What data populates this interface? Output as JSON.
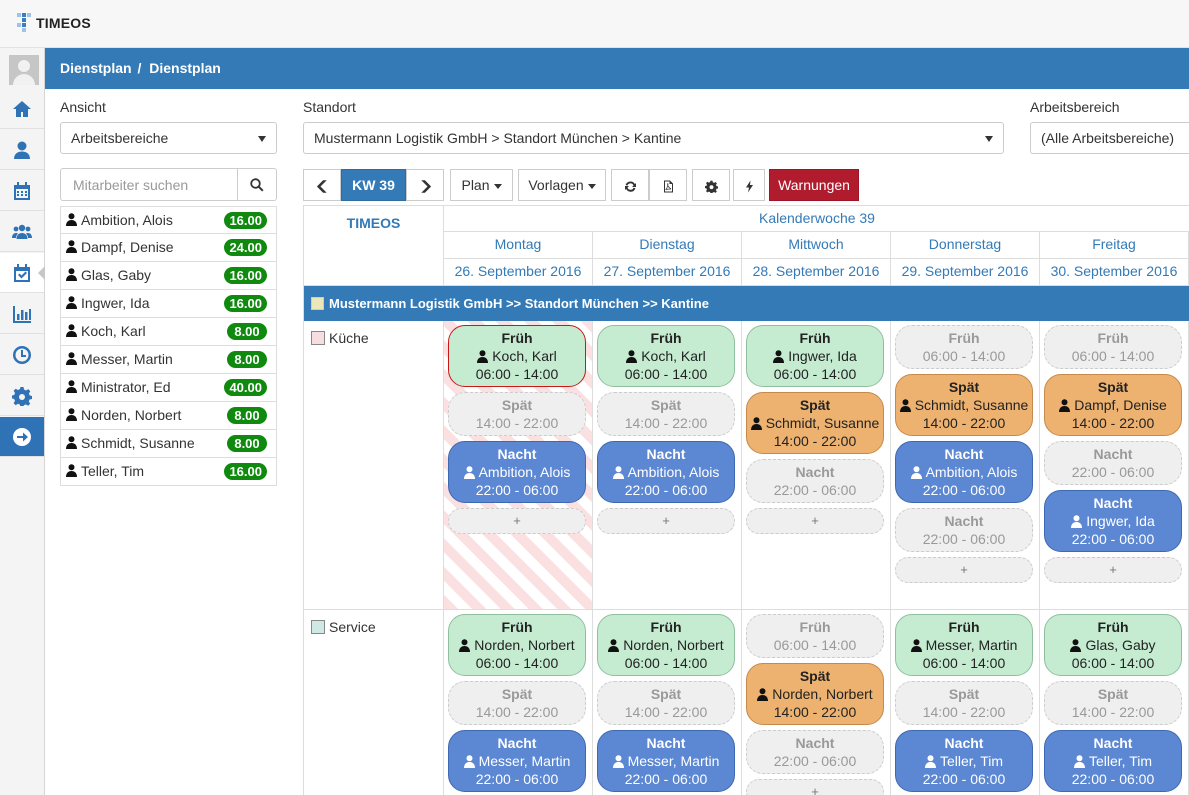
{
  "app": {
    "logo_text": "TIMEOS"
  },
  "sidebar": {
    "items": [
      {
        "name": "nav-home",
        "icon": "home-icon"
      },
      {
        "name": "nav-user",
        "icon": "user-icon"
      },
      {
        "name": "nav-calendar",
        "icon": "calendar-icon"
      },
      {
        "name": "nav-team",
        "icon": "team-icon"
      },
      {
        "name": "nav-schedule",
        "icon": "calendar-check-icon",
        "active": true
      },
      {
        "name": "nav-reports",
        "icon": "bar-chart-icon"
      },
      {
        "name": "nav-time",
        "icon": "clock-icon"
      },
      {
        "name": "nav-settings",
        "icon": "gear-icon"
      },
      {
        "name": "nav-go",
        "icon": "arrow-right-circle-icon"
      }
    ]
  },
  "header": {
    "breadcrumb_root": "Dienstplan",
    "separator": "/",
    "breadcrumb_current": "Dienstplan"
  },
  "filters": {
    "ansicht": {
      "label": "Ansicht",
      "value": "Arbeitsbereiche"
    },
    "standort": {
      "label": "Standort",
      "value": "Mustermann Logistik GmbH > Standort München > Kantine"
    },
    "arbeitsbereich": {
      "label": "Arbeitsbereich",
      "value": "(Alle Arbeitsbereiche)"
    }
  },
  "search": {
    "placeholder": "Mitarbeiter suchen"
  },
  "employees": [
    {
      "name": "Ambition, Alois",
      "hours": "16.00"
    },
    {
      "name": "Dampf, Denise",
      "hours": "24.00"
    },
    {
      "name": "Glas, Gaby",
      "hours": "16.00"
    },
    {
      "name": "Ingwer, Ida",
      "hours": "16.00"
    },
    {
      "name": "Koch, Karl",
      "hours": "8.00"
    },
    {
      "name": "Messer, Martin",
      "hours": "8.00"
    },
    {
      "name": "Ministrator, Ed",
      "hours": "40.00"
    },
    {
      "name": "Norden, Norbert",
      "hours": "8.00"
    },
    {
      "name": "Schmidt, Susanne",
      "hours": "8.00"
    },
    {
      "name": "Teller, Tim",
      "hours": "16.00"
    }
  ],
  "toolbar": {
    "prev_icon": "chevron-left-icon",
    "week": "KW 39",
    "next_icon": "chevron-right-icon",
    "plan": "Plan",
    "vorlagen": "Vorlagen",
    "refresh_icon": "refresh-icon",
    "pdf_icon": "pdf-icon",
    "settings_icon": "gear-icon",
    "flash_icon": "bolt-icon",
    "warnings": "Warnungen"
  },
  "calendar": {
    "corner": "TIMEOS",
    "week_title": "Kalenderwoche 39",
    "days": [
      {
        "name": "Montag",
        "date": "26. September 2016"
      },
      {
        "name": "Dienstag",
        "date": "27. September 2016"
      },
      {
        "name": "Mittwoch",
        "date": "28. September 2016"
      },
      {
        "name": "Donnerstag",
        "date": "29. September 2016"
      },
      {
        "name": "Freitag",
        "date": "30. September 2016"
      }
    ],
    "location": "Mustermann Logistik GmbH >> Standort München >> Kantine",
    "location_color": "#ede6b9",
    "add_label": "+",
    "areas": [
      {
        "name": "Küche",
        "color": "#f6dde0",
        "days": [
          {
            "shifts": [
              {
                "title": "Früh",
                "person": "Koch, Karl",
                "time": "06:00 - 14:00",
                "style": "green",
                "selected": true
              },
              {
                "title": "Spät",
                "time": "14:00 - 22:00",
                "style": "empty"
              },
              {
                "title": "Nacht",
                "person": "Ambition, Alois",
                "time": "22:00 - 06:00",
                "style": "blue"
              }
            ],
            "striped": true
          },
          {
            "shifts": [
              {
                "title": "Früh",
                "person": "Koch, Karl",
                "time": "06:00 - 14:00",
                "style": "green"
              },
              {
                "title": "Spät",
                "time": "14:00 - 22:00",
                "style": "empty"
              },
              {
                "title": "Nacht",
                "person": "Ambition, Alois",
                "time": "22:00 - 06:00",
                "style": "blue"
              }
            ]
          },
          {
            "shifts": [
              {
                "title": "Früh",
                "person": "Ingwer, Ida",
                "time": "06:00 - 14:00",
                "style": "green"
              },
              {
                "title": "Spät",
                "person": "Schmidt, Susanne",
                "time": "14:00 - 22:00",
                "style": "orange"
              },
              {
                "title": "Nacht",
                "time": "22:00 - 06:00",
                "style": "empty"
              }
            ]
          },
          {
            "shifts": [
              {
                "title": "Früh",
                "time": "06:00 - 14:00",
                "style": "empty"
              },
              {
                "title": "Spät",
                "person": "Schmidt, Susanne",
                "time": "14:00 - 22:00",
                "style": "orange"
              },
              {
                "title": "Nacht",
                "person": "Ambition, Alois",
                "time": "22:00 - 06:00",
                "style": "blue"
              },
              {
                "title": "Nacht",
                "time": "22:00 - 06:00",
                "style": "empty"
              }
            ]
          },
          {
            "shifts": [
              {
                "title": "Früh",
                "time": "06:00 - 14:00",
                "style": "empty"
              },
              {
                "title": "Spät",
                "person": "Dampf, Denise",
                "time": "14:00 - 22:00",
                "style": "orange"
              },
              {
                "title": "Nacht",
                "time": "22:00 - 06:00",
                "style": "empty"
              },
              {
                "title": "Nacht",
                "person": "Ingwer, Ida",
                "time": "22:00 - 06:00",
                "style": "blue"
              }
            ]
          }
        ]
      },
      {
        "name": "Service",
        "color": "#cfe8e3",
        "days": [
          {
            "shifts": [
              {
                "title": "Früh",
                "person": "Norden, Norbert",
                "time": "06:00 - 14:00",
                "style": "green"
              },
              {
                "title": "Spät",
                "time": "14:00 - 22:00",
                "style": "empty"
              },
              {
                "title": "Nacht",
                "person": "Messer, Martin",
                "time": "22:00 - 06:00",
                "style": "blue"
              }
            ]
          },
          {
            "shifts": [
              {
                "title": "Früh",
                "person": "Norden, Norbert",
                "time": "06:00 - 14:00",
                "style": "green"
              },
              {
                "title": "Spät",
                "time": "14:00 - 22:00",
                "style": "empty"
              },
              {
                "title": "Nacht",
                "person": "Messer, Martin",
                "time": "22:00 - 06:00",
                "style": "blue"
              }
            ]
          },
          {
            "shifts": [
              {
                "title": "Früh",
                "time": "06:00 - 14:00",
                "style": "empty"
              },
              {
                "title": "Spät",
                "person": "Norden, Norbert",
                "time": "14:00 - 22:00",
                "style": "orange"
              },
              {
                "title": "Nacht",
                "time": "22:00 - 06:00",
                "style": "empty"
              }
            ]
          },
          {
            "shifts": [
              {
                "title": "Früh",
                "person": "Messer, Martin",
                "time": "06:00 - 14:00",
                "style": "green"
              },
              {
                "title": "Spät",
                "time": "14:00 - 22:00",
                "style": "empty"
              },
              {
                "title": "Nacht",
                "person": "Teller, Tim",
                "time": "22:00 - 06:00",
                "style": "blue"
              }
            ]
          },
          {
            "shifts": [
              {
                "title": "Früh",
                "person": "Glas, Gaby",
                "time": "06:00 - 14:00",
                "style": "green"
              },
              {
                "title": "Spät",
                "time": "14:00 - 22:00",
                "style": "empty"
              },
              {
                "title": "Nacht",
                "person": "Teller, Tim",
                "time": "22:00 - 06:00",
                "style": "blue"
              }
            ]
          }
        ]
      }
    ]
  }
}
